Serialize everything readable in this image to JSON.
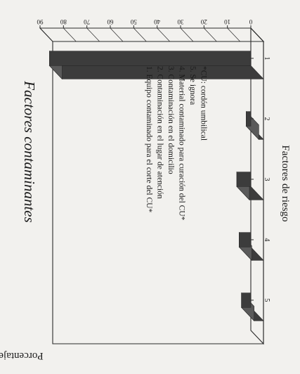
{
  "chart_data": {
    "type": "bar",
    "title": "Factores contaminantes",
    "xlabel": "Factores de riesgo",
    "ylabel": "Porcentaje",
    "categories": [
      "1",
      "2",
      "3",
      "4",
      "5"
    ],
    "values": [
      86,
      2,
      6,
      5,
      4
    ],
    "ylim": [
      0,
      90
    ],
    "yticks": [
      0,
      10,
      20,
      30,
      40,
      50,
      60,
      70,
      80,
      90
    ],
    "grid": false,
    "legend": [
      "1. Equipo contaminado para el corte del CU*",
      "2. Contaminación en el lugar de atención",
      "3. Contaminación en el domicilio",
      "4. Material contaminado para curación del CU*",
      "5. Se ignora",
      "*CU: cordón umbilical"
    ],
    "legend_placement": "inside plot, upper-left",
    "colors": {
      "bar": "#3c3c3c",
      "bar_top": "#5a5a5a",
      "frame": "#2a2a2a",
      "text": "#1a1a1a",
      "background": "#f2f1ee"
    }
  }
}
